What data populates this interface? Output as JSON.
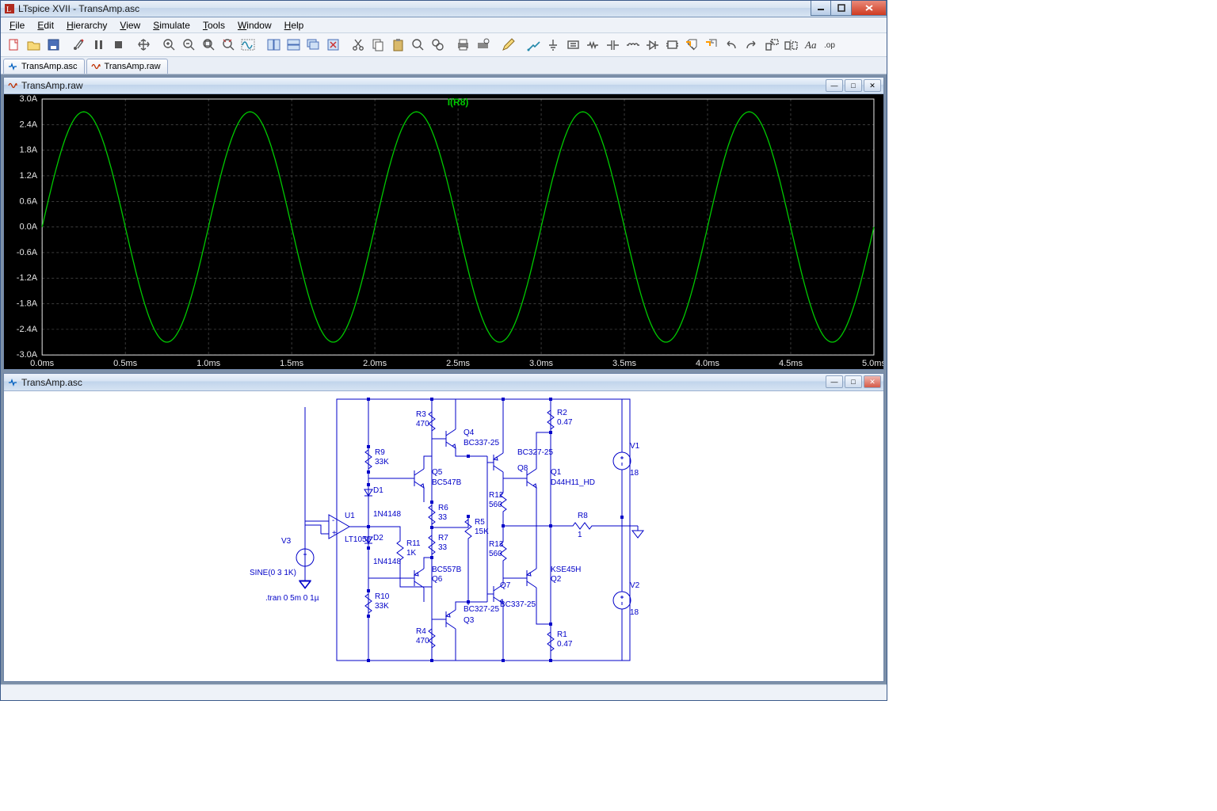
{
  "app": {
    "title": "LTspice XVII - TransAmp.asc",
    "icon_color": "#b02a1d"
  },
  "menu": [
    "File",
    "Edit",
    "Hierarchy",
    "View",
    "Simulate",
    "Tools",
    "Window",
    "Help"
  ],
  "doc_tabs": [
    {
      "label": "TransAmp.asc",
      "icon": "schematic"
    },
    {
      "label": "TransAmp.raw",
      "icon": "waveform"
    }
  ],
  "toolbar_icons": [
    "new",
    "open",
    "save",
    "sep",
    "run",
    "pause",
    "stop",
    "sep",
    "pan",
    "sep",
    "zoom-in",
    "zoom-out",
    "zoom-fit",
    "zoom-rect",
    "autorange",
    "sep",
    "tile-h",
    "tile-v",
    "cascade",
    "close-all",
    "sep",
    "cut",
    "copy",
    "paste",
    "find",
    "find2",
    "sep",
    "print",
    "setup",
    "sep",
    "pencil",
    "sep",
    "wire",
    "ground",
    "net",
    "resistor",
    "capacitor",
    "inductor",
    "diode",
    "component",
    "move",
    "drag",
    "undo",
    "redo",
    "rotate",
    "mirror",
    "text",
    "sprobe"
  ],
  "plot_window": {
    "title": "TransAmp.raw",
    "trace_label": "I(R8)",
    "trace_color": "#00c800",
    "background": "#000000",
    "grid_color": "#606060",
    "axis_color": "#e6e6e6",
    "text_color": "#e6e6e6",
    "y_ticks": [
      "3.0A",
      "2.4A",
      "1.8A",
      "1.2A",
      "0.6A",
      "0.0A",
      "-0.6A",
      "-1.2A",
      "-1.8A",
      "-2.4A",
      "-3.0A"
    ],
    "x_ticks": [
      "0.0ms",
      "0.5ms",
      "1.0ms",
      "1.5ms",
      "2.0ms",
      "2.5ms",
      "3.0ms",
      "3.5ms",
      "4.0ms",
      "4.5ms",
      "5.0ms"
    ],
    "sine": {
      "amplitude": 2.7,
      "cycles": 5,
      "y_range": 3.0
    }
  },
  "schematic_window": {
    "title": "TransAmp.asc",
    "wire_color": "#0000c8",
    "text_color": "#0000c8",
    "directive": ".tran 0 5m 0 1µ",
    "components": {
      "V3": {
        "label": "V3",
        "value": "SINE(0 3 1K)"
      },
      "U1": {
        "label": "U1",
        "value": "LT1056"
      },
      "D1": {
        "label": "D1",
        "value": "1N4148"
      },
      "D2": {
        "label": "D2",
        "value": "1N4148"
      },
      "R9": {
        "label": "R9",
        "value": "33K"
      },
      "R10": {
        "label": "R10",
        "value": "33K"
      },
      "R11": {
        "label": "R11",
        "value": "1K"
      },
      "R3": {
        "label": "R3",
        "value": "470"
      },
      "R4": {
        "label": "R4",
        "value": "470"
      },
      "R6": {
        "label": "R6",
        "value": "33"
      },
      "R7": {
        "label": "R7",
        "value": "33"
      },
      "R5": {
        "label": "R5",
        "value": "15K"
      },
      "R12": {
        "label": "R12",
        "value": "560"
      },
      "R13": {
        "label": "R13",
        "value": "560"
      },
      "R2": {
        "label": "R2",
        "value": "0.47"
      },
      "R1": {
        "label": "R1",
        "value": "0.47"
      },
      "R8": {
        "label": "R8",
        "value": "1"
      },
      "Q4": {
        "label": "Q4",
        "value": "BC337-25"
      },
      "Q5": {
        "label": "Q5",
        "value": "BC547B"
      },
      "Q6": {
        "label": "Q6",
        "value": "BC557B"
      },
      "Q3": {
        "label": "Q3",
        "value": "BC327-25"
      },
      "Q8": {
        "label": "Q8",
        "value": "BC327-25"
      },
      "Q7": {
        "label": "Q7",
        "value": "BC337-25"
      },
      "Q1": {
        "label": "Q1",
        "value": "D44H11_HD"
      },
      "Q2": {
        "label": "Q2",
        "value": "KSE45H"
      },
      "V1": {
        "label": "V1",
        "value": "18"
      },
      "V2": {
        "label": "V2",
        "value": "18"
      }
    }
  }
}
